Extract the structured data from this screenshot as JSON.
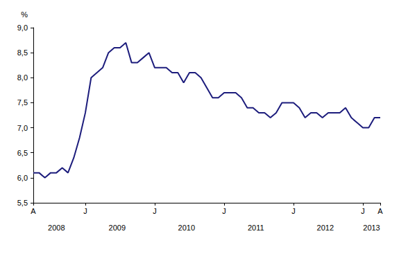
{
  "chart_data": {
    "type": "line",
    "ylabel": "%",
    "categories": [
      "A",
      null,
      null,
      null,
      null,
      null,
      null,
      null,
      null,
      "J",
      null,
      null,
      null,
      null,
      null,
      null,
      null,
      null,
      null,
      null,
      null,
      "J",
      null,
      null,
      null,
      null,
      null,
      null,
      null,
      null,
      null,
      null,
      null,
      "J",
      null,
      null,
      null,
      null,
      null,
      null,
      null,
      null,
      null,
      null,
      null,
      "J",
      null,
      null,
      null,
      null,
      null,
      null,
      null,
      null,
      null,
      null,
      null,
      "J",
      null,
      null,
      "A"
    ],
    "values": [
      6.1,
      6.1,
      6.0,
      6.1,
      6.1,
      6.2,
      6.1,
      6.4,
      6.8,
      7.3,
      8.0,
      8.1,
      8.2,
      8.5,
      8.6,
      8.6,
      8.7,
      8.3,
      8.3,
      8.4,
      8.5,
      8.2,
      8.2,
      8.2,
      8.1,
      8.1,
      7.9,
      8.1,
      8.1,
      8.0,
      7.8,
      7.6,
      7.6,
      7.7,
      7.7,
      7.7,
      7.6,
      7.4,
      7.4,
      7.3,
      7.3,
      7.2,
      7.3,
      7.5,
      7.5,
      7.5,
      7.4,
      7.2,
      7.3,
      7.3,
      7.2,
      7.3,
      7.3,
      7.3,
      7.4,
      7.2,
      7.1,
      7.0,
      7.0,
      7.2,
      7.2
    ],
    "x_groups": [
      {
        "label": "2008",
        "count": 9
      },
      {
        "label": "2009",
        "count": 12
      },
      {
        "label": "2010",
        "count": 12
      },
      {
        "label": "2011",
        "count": 12
      },
      {
        "label": "2012",
        "count": 12
      },
      {
        "label": "2013",
        "count": 4
      }
    ],
    "color": "#1c1c7c",
    "ylim": [
      5.5,
      9.0
    ],
    "yticks": [
      {
        "value": 5.5,
        "label": "5,5"
      },
      {
        "value": 6.0,
        "label": "6,0"
      },
      {
        "value": 6.5,
        "label": "6,5"
      },
      {
        "value": 7.0,
        "label": "7,0"
      },
      {
        "value": 7.5,
        "label": "7,5"
      },
      {
        "value": 8.0,
        "label": "8,0"
      },
      {
        "value": 8.5,
        "label": "8,5"
      },
      {
        "value": 9.0,
        "label": "9,0"
      }
    ],
    "grid": false
  }
}
